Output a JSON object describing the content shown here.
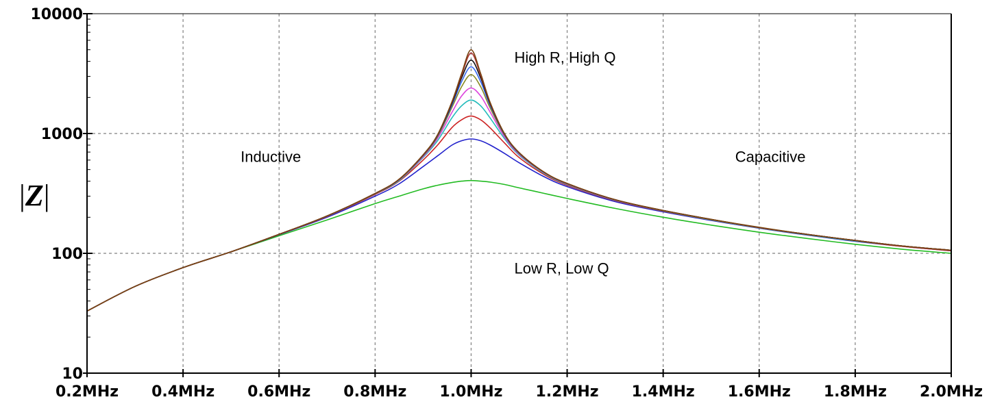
{
  "chart_data": {
    "type": "line",
    "title": "",
    "xlabel": "",
    "ylabel": "|Z|",
    "x_scale": "linear",
    "y_scale": "log",
    "xlim": [
      0.2,
      2.0
    ],
    "ylim": [
      10,
      10000
    ],
    "x_unit": "MHz",
    "x_ticks": [
      0.2,
      0.4,
      0.6,
      0.8,
      1.0,
      1.2,
      1.4,
      1.6,
      1.8,
      2.0
    ],
    "x_tick_labels": [
      "0.2MHz",
      "0.4MHz",
      "0.6MHz",
      "0.8MHz",
      "1.0MHz",
      "1.2MHz",
      "1.4MHz",
      "1.6MHz",
      "1.8MHz",
      "2.0MHz"
    ],
    "y_ticks": [
      10,
      100,
      1000,
      10000
    ],
    "y_tick_labels": [
      "10",
      "100",
      "1000",
      "10000"
    ],
    "grid": true,
    "legend": "none",
    "x": [
      0.2,
      0.3,
      0.4,
      0.5,
      0.6,
      0.7,
      0.8,
      0.85,
      0.9,
      0.93,
      0.96,
      0.98,
      1.0,
      1.02,
      1.04,
      1.07,
      1.1,
      1.15,
      1.2,
      1.3,
      1.4,
      1.5,
      1.6,
      1.7,
      1.8,
      1.9,
      2.0
    ],
    "series": [
      {
        "color": "#22bb22",
        "values": [
          33,
          53,
          76,
          103,
          140,
          190,
          260,
          300,
          345,
          370,
          390,
          400,
          405,
          400,
          393,
          375,
          352,
          318,
          287,
          237,
          200,
          172,
          150,
          133,
          119,
          108,
          100
        ]
      },
      {
        "color": "#2222cc",
        "values": [
          33,
          53,
          76,
          103,
          143,
          200,
          300,
          380,
          530,
          650,
          800,
          870,
          900,
          870,
          800,
          680,
          570,
          440,
          360,
          270,
          222,
          188,
          162,
          142,
          126,
          114,
          105
        ]
      },
      {
        "color": "#cc2222",
        "values": [
          33,
          53,
          76,
          103,
          144,
          203,
          310,
          400,
          600,
          800,
          1120,
          1300,
          1400,
          1300,
          1110,
          830,
          630,
          460,
          370,
          275,
          225,
          190,
          163,
          143,
          127,
          114,
          105
        ]
      },
      {
        "color": "#22bbbb",
        "values": [
          33,
          53,
          76,
          103,
          144,
          204,
          313,
          405,
          630,
          870,
          1350,
          1700,
          1900,
          1700,
          1340,
          900,
          660,
          470,
          375,
          277,
          226,
          190,
          163,
          143,
          127,
          115,
          106
        ]
      },
      {
        "color": "#dd44dd",
        "values": [
          33,
          53,
          76,
          103,
          144,
          204,
          314,
          410,
          640,
          910,
          1500,
          2050,
          2400,
          2050,
          1500,
          930,
          670,
          475,
          378,
          278,
          227,
          191,
          164,
          144,
          128,
          115,
          106
        ]
      },
      {
        "color": "#888822",
        "values": [
          33,
          53,
          76,
          103,
          144,
          204,
          315,
          412,
          650,
          940,
          1650,
          2450,
          3100,
          2450,
          1620,
          960,
          680,
          478,
          380,
          279,
          227,
          191,
          164,
          144,
          128,
          115,
          106
        ]
      },
      {
        "color": "#3366ee",
        "values": [
          33,
          53,
          76,
          103,
          144,
          204,
          315,
          413,
          655,
          955,
          1720,
          2700,
          3600,
          2700,
          1700,
          970,
          685,
          480,
          381,
          279,
          228,
          192,
          164,
          144,
          128,
          115,
          106
        ]
      },
      {
        "color": "#111111",
        "values": [
          33,
          53,
          76,
          103,
          144,
          205,
          316,
          414,
          660,
          965,
          1780,
          2900,
          4100,
          2900,
          1750,
          980,
          690,
          481,
          382,
          280,
          228,
          192,
          164,
          144,
          128,
          115,
          106
        ]
      },
      {
        "color": "#aa3333",
        "values": [
          33,
          53,
          76,
          103,
          144,
          205,
          316,
          415,
          662,
          970,
          1820,
          3050,
          4700,
          3050,
          1780,
          985,
          692,
          482,
          382,
          280,
          228,
          192,
          164,
          144,
          128,
          115,
          106
        ]
      },
      {
        "color": "#774411",
        "values": [
          33,
          53,
          76,
          103,
          144,
          205,
          316,
          415,
          664,
          975,
          1840,
          3150,
          5000,
          3150,
          1800,
          990,
          694,
          482,
          383,
          280,
          228,
          192,
          165,
          144,
          128,
          115,
          106
        ]
      }
    ],
    "annotations": [
      {
        "text": "High R, High Q",
        "x": 1.09,
        "y": 3900
      },
      {
        "text": "Inductive",
        "x": 0.52,
        "y": 580
      },
      {
        "text": "Capacitive",
        "x": 1.55,
        "y": 580
      },
      {
        "text": "Low R, Low Q",
        "x": 1.09,
        "y": 68
      }
    ]
  }
}
